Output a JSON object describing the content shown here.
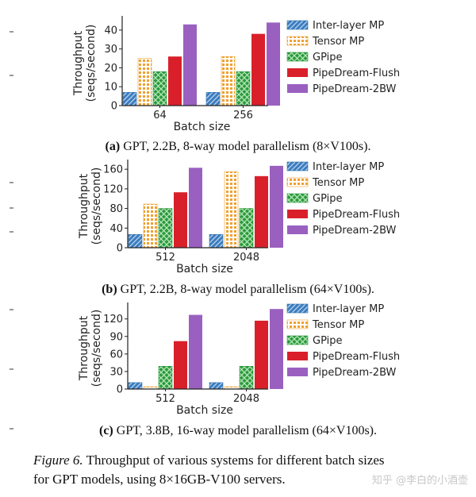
{
  "series_names": [
    "Inter-layer MP",
    "Tensor MP",
    "GPipe",
    "PipeDream-Flush",
    "PipeDream-2BW"
  ],
  "colors": {
    "inter": "#2f6fa8",
    "tensor": "#f0a030",
    "gpipe": "#2a9a3a",
    "flush": "#d9202a",
    "twobw": "#9a60c0"
  },
  "chart_data": [
    {
      "type": "bar",
      "ylabel_line1": "Throughput",
      "ylabel_line2": "(seqs/second)",
      "xlabel": "Batch size",
      "categories": [
        "64",
        "256"
      ],
      "ylim": [
        0,
        45
      ],
      "yticks": [
        "0",
        "10",
        "20",
        "30",
        "40"
      ],
      "ytick_values": [
        0,
        10,
        20,
        30,
        40
      ],
      "series": [
        {
          "name": "Inter-layer MP",
          "values": [
            7,
            7
          ]
        },
        {
          "name": "Tensor MP",
          "values": [
            25,
            26
          ]
        },
        {
          "name": "GPipe",
          "values": [
            18,
            18
          ]
        },
        {
          "name": "PipeDream-Flush",
          "values": [
            26,
            38
          ]
        },
        {
          "name": "PipeDream-2BW",
          "values": [
            43,
            44
          ]
        }
      ],
      "caption_label": "(a)",
      "caption_text": " GPT, 2.2B, 8-way model parallelism (8×V100s)."
    },
    {
      "type": "bar",
      "ylabel_line1": "Throughput",
      "ylabel_line2": "(seqs/second)",
      "xlabel": "Batch size",
      "categories": [
        "512",
        "2048"
      ],
      "ylim": [
        0,
        170
      ],
      "yticks": [
        "0",
        "40",
        "80",
        "120",
        "160"
      ],
      "ytick_values": [
        0,
        40,
        80,
        120,
        160
      ],
      "series": [
        {
          "name": "Inter-layer MP",
          "values": [
            27,
            27
          ]
        },
        {
          "name": "Tensor MP",
          "values": [
            89,
            155
          ]
        },
        {
          "name": "GPipe",
          "values": [
            80,
            80
          ]
        },
        {
          "name": "PipeDream-Flush",
          "values": [
            113,
            146
          ]
        },
        {
          "name": "PipeDream-2BW",
          "values": [
            163,
            167
          ]
        }
      ],
      "caption_label": "(b)",
      "caption_text": " GPT, 2.2B, 8-way model parallelism (64×V100s)."
    },
    {
      "type": "bar",
      "ylabel_line1": "Throughput",
      "ylabel_line2": "(seqs/second)",
      "xlabel": "Batch size",
      "categories": [
        "512",
        "2048"
      ],
      "ylim": [
        0,
        140
      ],
      "yticks": [
        "0",
        "30",
        "60",
        "90",
        "120"
      ],
      "ytick_values": [
        0,
        30,
        60,
        90,
        120
      ],
      "series": [
        {
          "name": "Inter-layer MP",
          "values": [
            11,
            11
          ]
        },
        {
          "name": "Tensor MP",
          "values": [
            4,
            4
          ]
        },
        {
          "name": "GPipe",
          "values": [
            39,
            39
          ]
        },
        {
          "name": "PipeDream-Flush",
          "values": [
            82,
            117
          ]
        },
        {
          "name": "PipeDream-2BW",
          "values": [
            127,
            137
          ]
        }
      ],
      "caption_label": "(c)",
      "caption_text": " GPT, 3.8B, 16-way model parallelism (64×V100s)."
    }
  ],
  "figure_caption": {
    "label": "Figure 6.",
    "line1": " Throughput of various systems for different batch sizes",
    "line2": "for GPT models, using 8×16GB-V100 servers."
  },
  "watermark": "知乎 @李白的小酒壶"
}
